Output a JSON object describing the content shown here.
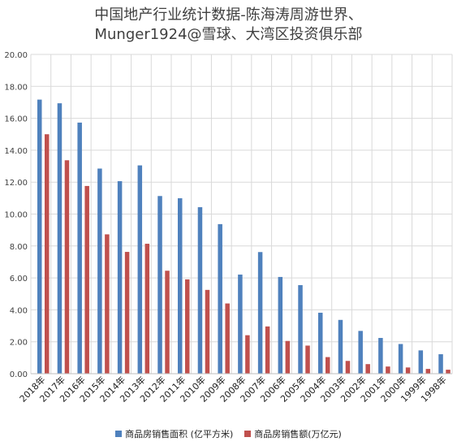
{
  "title": {
    "line1": "中国地产行业统计数据-陈海涛周游世界、",
    "line2": "Munger1924@雪球、大湾区投资俱乐部"
  },
  "colors": {
    "area": "#4f81bd",
    "sales": "#c0504d",
    "grid": "#d9d9d9",
    "axis_text": "#404040"
  },
  "chart_data": {
    "type": "bar",
    "title": "中国地产行业统计数据-陈海涛周游世界、Munger1924@雪球、大湾区投资俱乐部",
    "categories": [
      "2018年",
      "2017年",
      "2016年",
      "2015年",
      "2014年",
      "2013年",
      "2012年",
      "2011年",
      "2010年",
      "2009年",
      "2008年",
      "2007年",
      "2006年",
      "2005年",
      "2004年",
      "2003年",
      "2002年",
      "2001年",
      "2000年",
      "1999年",
      "1998年"
    ],
    "series": [
      {
        "name": "商品房销售面积 (亿平方米)",
        "values": [
          17.17,
          16.94,
          15.73,
          12.85,
          12.06,
          13.05,
          11.13,
          10.99,
          10.43,
          9.37,
          6.21,
          7.62,
          6.06,
          5.55,
          3.82,
          3.37,
          2.68,
          2.24,
          1.86,
          1.46,
          1.22
        ]
      },
      {
        "name": "商品房销售额(万亿元)",
        "values": [
          15.0,
          13.37,
          11.76,
          8.73,
          7.63,
          8.14,
          6.45,
          5.91,
          5.25,
          4.4,
          2.41,
          2.96,
          2.05,
          1.76,
          1.04,
          0.8,
          0.6,
          0.45,
          0.39,
          0.3,
          0.25
        ]
      }
    ],
    "ylim": [
      0,
      20
    ],
    "yticks": [
      "0.00",
      "2.00",
      "4.00",
      "6.00",
      "8.00",
      "10.00",
      "12.00",
      "14.00",
      "16.00",
      "18.00",
      "20.00"
    ],
    "grid": true,
    "legend_position": "bottom"
  }
}
